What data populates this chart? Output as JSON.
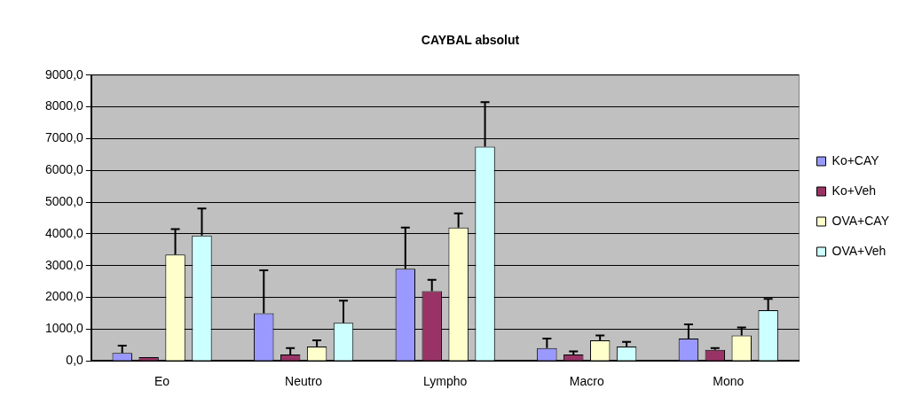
{
  "chart_data": {
    "type": "bar",
    "title": "CAYBAL absolut",
    "categories": [
      "Eo",
      "Neutro",
      "Lympho",
      "Macro",
      "Mono"
    ],
    "series": [
      {
        "name": "Ko+CAY",
        "color": "#9999ff",
        "values": [
          250,
          1500,
          2900,
          400,
          700
        ],
        "errors": [
          [
            250,
            480
          ],
          [
            1500,
            2850
          ],
          [
            2900,
            4200
          ],
          [
            400,
            700
          ],
          [
            700,
            1150
          ]
        ]
      },
      {
        "name": "Ko+Veh",
        "color": "#993366",
        "values": [
          120,
          200,
          2200,
          200,
          350
        ],
        "errors": [
          null,
          [
            200,
            400
          ],
          [
            2200,
            2550
          ],
          [
            200,
            300
          ],
          [
            350,
            400
          ]
        ]
      },
      {
        "name": "OVA+CAY",
        "color": "#ffffcc",
        "values": [
          3350,
          450,
          4200,
          650,
          800
        ],
        "errors": [
          [
            3350,
            4150
          ],
          [
            450,
            650
          ],
          [
            4200,
            4650
          ],
          [
            650,
            800
          ],
          [
            800,
            1050
          ]
        ]
      },
      {
        "name": "OVA+Veh",
        "color": "#ccffff",
        "values": [
          3950,
          1200,
          6750,
          450,
          1600
        ],
        "errors": [
          [
            3950,
            4800
          ],
          [
            1200,
            1900
          ],
          [
            6750,
            8150
          ],
          [
            450,
            600
          ],
          [
            1600,
            1950
          ]
        ]
      }
    ],
    "ylim": [
      0,
      9000
    ],
    "yticks": [
      {
        "value": 0,
        "label": "0,0"
      },
      {
        "value": 1000,
        "label": "1000,0"
      },
      {
        "value": 2000,
        "label": "2000,0"
      },
      {
        "value": 3000,
        "label": "3000,0"
      },
      {
        "value": 4000,
        "label": "4000,0"
      },
      {
        "value": 5000,
        "label": "5000,0"
      },
      {
        "value": 6000,
        "label": "6000,0"
      },
      {
        "value": 7000,
        "label": "7000,0"
      },
      {
        "value": 8000,
        "label": "8000,0"
      },
      {
        "value": 9000,
        "label": "9000,0"
      }
    ],
    "grid": "y",
    "legend": "right"
  }
}
